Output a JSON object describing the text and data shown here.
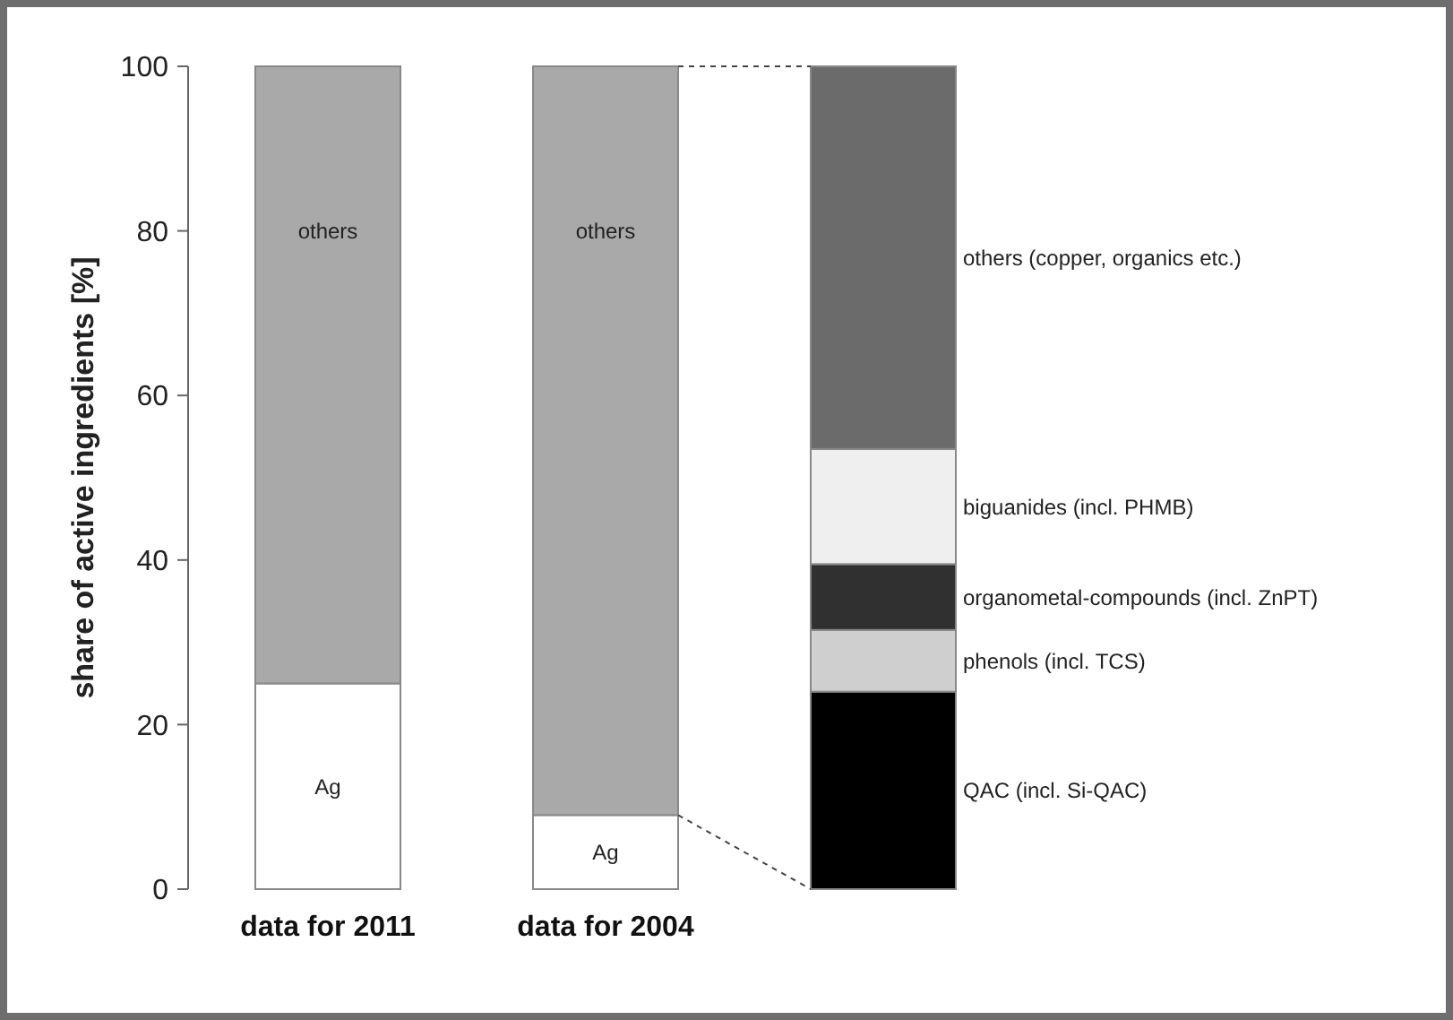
{
  "chart_data": {
    "type": "bar",
    "stacked": true,
    "ylabel": "share of active ingredients [%]",
    "categories": [
      "data for 2011",
      "data for 2004",
      null
    ],
    "ylim": [
      0,
      100
    ],
    "yticks": [
      0,
      20,
      40,
      60,
      80,
      100
    ],
    "grid": false,
    "series": [
      {
        "name": "Ag",
        "color": "#ffffff",
        "values": [
          25,
          9,
          null
        ]
      },
      {
        "name": "others",
        "color": "#a9a9a9",
        "values": [
          75,
          91,
          null
        ]
      },
      {
        "name": "QAC (incl. Si-QAC)",
        "color": "#000000",
        "values": [
          null,
          null,
          24
        ]
      },
      {
        "name": "phenols (incl. TCS)",
        "color": "#cfcfcf",
        "values": [
          null,
          null,
          7.5
        ]
      },
      {
        "name": "organometal-compounds (incl. ZnPT)",
        "color": "#303030",
        "values": [
          null,
          null,
          8
        ]
      },
      {
        "name": "biguanides (incl. PHMB)",
        "color": "#efefef",
        "values": [
          null,
          null,
          14
        ]
      },
      {
        "name": "others (copper, organics etc.)",
        "color": "#6b6b6b",
        "values": [
          null,
          null,
          46.5
        ]
      }
    ]
  }
}
